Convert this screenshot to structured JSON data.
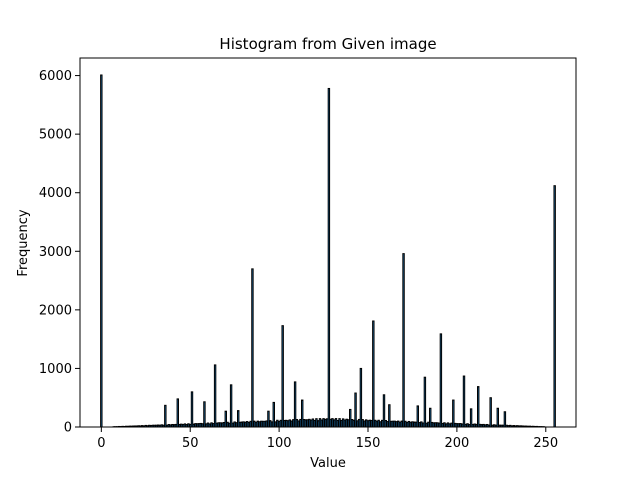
{
  "chart_data": {
    "type": "bar",
    "title": "Histogram from Given image",
    "xlabel": "Value",
    "ylabel": "Frequency",
    "xlim": [
      -12,
      267
    ],
    "ylim": [
      0,
      6300
    ],
    "xticks": [
      0,
      50,
      100,
      150,
      200,
      250
    ],
    "yticks": [
      0,
      1000,
      2000,
      3000,
      4000,
      5000,
      6000
    ],
    "grid": false,
    "legend": "none",
    "bar_color": "#1f77b4",
    "edge_color": "#000000",
    "spikes": [
      {
        "x": 0,
        "value": 6010
      },
      {
        "x": 36,
        "value": 370
      },
      {
        "x": 43,
        "value": 480
      },
      {
        "x": 51,
        "value": 600
      },
      {
        "x": 58,
        "value": 430
      },
      {
        "x": 64,
        "value": 1060
      },
      {
        "x": 70,
        "value": 270
      },
      {
        "x": 73,
        "value": 720
      },
      {
        "x": 77,
        "value": 280
      },
      {
        "x": 85,
        "value": 2700
      },
      {
        "x": 94,
        "value": 270
      },
      {
        "x": 97,
        "value": 420
      },
      {
        "x": 102,
        "value": 1730
      },
      {
        "x": 109,
        "value": 770
      },
      {
        "x": 113,
        "value": 460
      },
      {
        "x": 128,
        "value": 5780
      },
      {
        "x": 140,
        "value": 300
      },
      {
        "x": 143,
        "value": 580
      },
      {
        "x": 146,
        "value": 1000
      },
      {
        "x": 153,
        "value": 1810
      },
      {
        "x": 159,
        "value": 550
      },
      {
        "x": 162,
        "value": 380
      },
      {
        "x": 170,
        "value": 2960
      },
      {
        "x": 178,
        "value": 360
      },
      {
        "x": 182,
        "value": 850
      },
      {
        "x": 185,
        "value": 320
      },
      {
        "x": 191,
        "value": 1590
      },
      {
        "x": 198,
        "value": 460
      },
      {
        "x": 204,
        "value": 870
      },
      {
        "x": 208,
        "value": 310
      },
      {
        "x": 212,
        "value": 690
      },
      {
        "x": 219,
        "value": 500
      },
      {
        "x": 223,
        "value": 320
      },
      {
        "x": 227,
        "value": 260
      },
      {
        "x": 255,
        "value": 4120
      }
    ],
    "background_profile": {
      "start": 7,
      "end": 249,
      "peak": 128,
      "peak_value": 150,
      "edge_value": 5
    }
  }
}
